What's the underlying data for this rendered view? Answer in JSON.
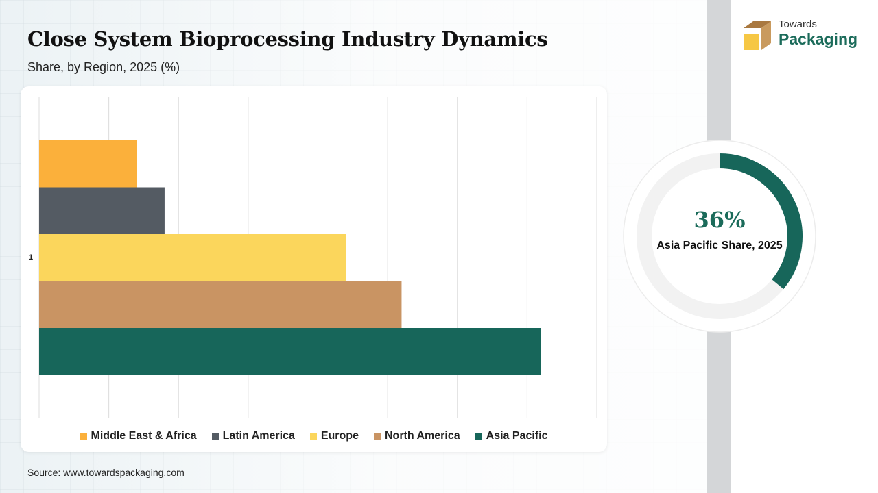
{
  "header": {
    "title": "Close System Bioprocessing Industry Dynamics",
    "subtitle": "Share, by Region, 2025 (%)"
  },
  "logo": {
    "line1": "Towards",
    "line2": "Packaging",
    "colors": {
      "top": "#a9783f",
      "front": "#f6c744",
      "side": "#c99a5e"
    }
  },
  "chart_data": [
    {
      "type": "bar",
      "orientation": "horizontal",
      "title": "Close System Bioprocessing Industry Dynamics",
      "subtitle": "Share, by Region, 2025 (%)",
      "categories": [
        "1"
      ],
      "series": [
        {
          "name": "Middle East & Africa",
          "values": [
            7
          ],
          "color": "#fbb03b"
        },
        {
          "name": "Latin America",
          "values": [
            9
          ],
          "color": "#545b63"
        },
        {
          "name": "Europe",
          "values": [
            22
          ],
          "color": "#fbd65c"
        },
        {
          "name": "North America",
          "values": [
            26
          ],
          "color": "#c99463"
        },
        {
          "name": "Asia Pacific",
          "values": [
            36
          ],
          "color": "#17665a"
        }
      ],
      "xlim": [
        0,
        40
      ],
      "grid": true,
      "legend": "bottom",
      "show_tick_labels": false
    },
    {
      "type": "pie",
      "style": "donut",
      "value": 36,
      "value_label": "36%",
      "label": "Asia Pacific Share, 2025",
      "color": "#17665a",
      "track_color": "#f2f2f2"
    }
  ],
  "source": "Source: www.towardspackaging.com"
}
